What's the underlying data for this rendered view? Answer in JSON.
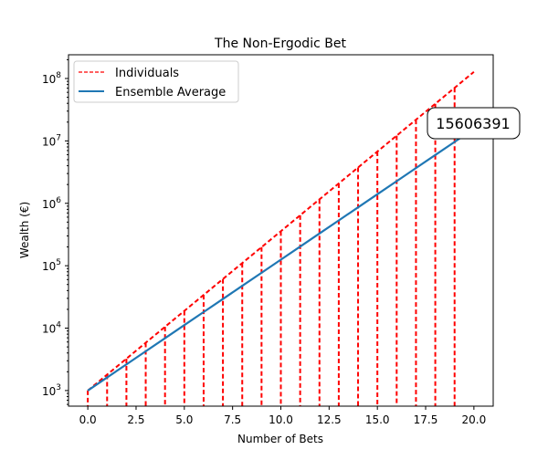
{
  "chart_data": {
    "type": "line",
    "title": "The Non-Ergodic Bet",
    "xlabel": "Number of Bets",
    "ylabel": "Wealth (€)",
    "xlim": [
      -1,
      21
    ],
    "ylim_log10": [
      2.75,
      8.38
    ],
    "yscale": "log",
    "xticks": [
      0,
      2.5,
      5,
      7.5,
      10,
      12.5,
      15,
      17.5,
      20
    ],
    "xtick_labels": [
      "0.0",
      "2.5",
      "5.0",
      "7.5",
      "10.0",
      "12.5",
      "15.0",
      "17.5",
      "20.0"
    ],
    "yticks_exp": [
      3,
      4,
      5,
      6,
      7,
      8
    ],
    "legend_position": "top-left",
    "series": [
      {
        "name": "Individuals",
        "color": "#ff0000",
        "style": "dashed",
        "start": 1000,
        "growth_factor": 1.8,
        "x": [
          0,
          1,
          2,
          3,
          4,
          5,
          6,
          7,
          8,
          9,
          10,
          11,
          12,
          13,
          14,
          15,
          16,
          17,
          18,
          19,
          20
        ],
        "drop_to_zero_at": [
          0,
          1,
          2,
          3,
          4,
          5,
          6,
          7,
          8,
          9,
          10,
          11,
          12,
          13,
          14,
          15,
          16,
          17,
          18,
          19
        ]
      },
      {
        "name": "Ensemble Average",
        "color": "#1f77b4",
        "style": "solid",
        "start": 1000,
        "growth_factor": 1.6206,
        "x": [
          0,
          1,
          2,
          3,
          4,
          5,
          6,
          7,
          8,
          9,
          10,
          11,
          12,
          13,
          14,
          15,
          16,
          17,
          18,
          19,
          20
        ]
      }
    ],
    "annotation": "15606391"
  }
}
